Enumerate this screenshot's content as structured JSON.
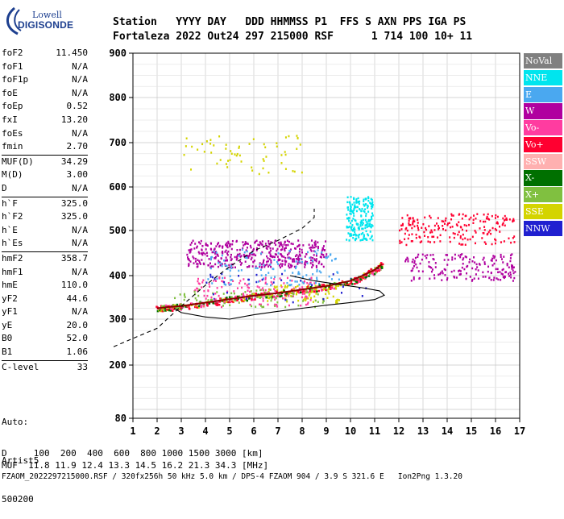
{
  "logo": {
    "top": "Lowell",
    "bottom": "DIGISONDE"
  },
  "header": {
    "line1": "Station   YYYY DAY   DDD HHMMSS P1  FFS S AXN PPS IGA PS",
    "line2": "Fortaleza 2022 Out24 297 215000 RSF      1 714 100 10+ 11"
  },
  "params": [
    {
      "name": "foF2",
      "value": "11.450"
    },
    {
      "name": "foF1",
      "value": "N/A"
    },
    {
      "name": "foF1p",
      "value": "N/A"
    },
    {
      "name": "foE",
      "value": "N/A"
    },
    {
      "name": "foEp",
      "value": "0.52"
    },
    {
      "name": "fxI",
      "value": "13.20"
    },
    {
      "name": "foEs",
      "value": "N/A"
    },
    {
      "name": "fmin",
      "value": "2.70"
    },
    {
      "name": "MUF(D)",
      "value": "34.29"
    },
    {
      "name": "M(D)",
      "value": "3.00"
    },
    {
      "name": "D",
      "value": "N/A"
    },
    {
      "name": "h`F",
      "value": "325.0"
    },
    {
      "name": "h`F2",
      "value": "325.0"
    },
    {
      "name": "h`E",
      "value": "N/A"
    },
    {
      "name": "h`Es",
      "value": "N/A"
    },
    {
      "name": "hmF2",
      "value": "358.7"
    },
    {
      "name": "hmF1",
      "value": "N/A"
    },
    {
      "name": "hmE",
      "value": "110.0"
    },
    {
      "name": "yF2",
      "value": "44.6"
    },
    {
      "name": "yF1",
      "value": "N/A"
    },
    {
      "name": "yE",
      "value": "20.0"
    },
    {
      "name": "B0",
      "value": "52.0"
    },
    {
      "name": "B1",
      "value": "1.06"
    },
    {
      "name": "C-level",
      "value": "33"
    }
  ],
  "auto": {
    "line1": "Auto:",
    "line2": "Artist5",
    "line3": "500200"
  },
  "legend": [
    {
      "label": "NoVal",
      "color": "#808080"
    },
    {
      "label": "NNE",
      "color": "#00e5ee"
    },
    {
      "label": "E",
      "color": "#4aa8f0"
    },
    {
      "label": "W",
      "color": "#b0009f"
    },
    {
      "label": "Vo-",
      "color": "#ff3ca0"
    },
    {
      "label": "Vo+",
      "color": "#ff0030"
    },
    {
      "label": "SSW",
      "color": "#ffb0b0"
    },
    {
      "label": "X-",
      "color": "#007000"
    },
    {
      "label": "X+",
      "color": "#80c040"
    },
    {
      "label": "SSE",
      "color": "#d4d400"
    },
    {
      "label": "NNW",
      "color": "#2020d0"
    }
  ],
  "bottom": {
    "line1": "D     100  200  400  600  800 1000 1500 3000 [km]",
    "line2": "MUF  11.8 11.9 12.4 13.3 14.5 16.2 21.3 34.3 [MHz]",
    "line3": "FZAOM_2022297215000.RSF / 320fx256h 50 kHz 5.0 km / DPS-4 FZAOM 904 / 3.9 S 321.6 E   Ion2Png 1.3.20"
  },
  "chart_data": {
    "type": "scatter",
    "xlim": [
      1,
      17
    ],
    "ylim": [
      80,
      900
    ],
    "xticks": [
      "1",
      "2",
      "3",
      "4",
      "5",
      "6",
      "7",
      "8",
      "9",
      "10",
      "11",
      "12",
      "13",
      "14",
      "15",
      "16",
      "17"
    ],
    "yticks": [
      "80",
      "200",
      "300",
      "400",
      "500",
      "600",
      "700",
      "800",
      "900"
    ],
    "grid": true,
    "profile_solid": [
      [
        2.7,
        325
      ],
      [
        3.0,
        315
      ],
      [
        4.0,
        305
      ],
      [
        5.0,
        300
      ],
      [
        6.0,
        310
      ],
      [
        7.0,
        318
      ],
      [
        8.0,
        325
      ],
      [
        9.0,
        332
      ],
      [
        10.0,
        338
      ],
      [
        11.0,
        345
      ],
      [
        11.4,
        355
      ],
      [
        11.2,
        365
      ],
      [
        10.5,
        372
      ],
      [
        9.5,
        380
      ],
      [
        8.5,
        388
      ],
      [
        7.5,
        400
      ]
    ],
    "profile_dashed": [
      [
        0.2,
        240
      ],
      [
        1.0,
        258
      ],
      [
        2.0,
        280
      ],
      [
        3.0,
        330
      ],
      [
        4.0,
        378
      ],
      [
        5.0,
        420
      ],
      [
        6.0,
        455
      ],
      [
        7.0,
        478
      ],
      [
        8.0,
        505
      ],
      [
        8.5,
        530
      ],
      [
        8.5,
        550
      ]
    ],
    "trace_f2": [
      [
        2.0,
        325
      ],
      [
        2.5,
        328
      ],
      [
        3.0,
        330
      ],
      [
        4.0,
        338
      ],
      [
        5.0,
        346
      ],
      [
        6.0,
        354
      ],
      [
        7.0,
        360
      ],
      [
        8.0,
        368
      ],
      [
        9.0,
        376
      ],
      [
        10.0,
        388
      ],
      [
        10.5,
        400
      ],
      [
        11.0,
        413
      ],
      [
        11.3,
        425
      ]
    ],
    "spread_clusters": [
      {
        "x": [
          3.2,
          9.0
        ],
        "y": [
          420,
          480
        ],
        "color": "#b0009f",
        "count": 420
      },
      {
        "x": [
          3.5,
          8.5
        ],
        "y": [
          330,
          400
        ],
        "color": "#ff3ca0",
        "count": 160
      },
      {
        "x": [
          4.0,
          9.5
        ],
        "y": [
          380,
          460
        ],
        "color": "#4aa8f0",
        "count": 120
      },
      {
        "x": [
          9.8,
          10.9
        ],
        "y": [
          480,
          580
        ],
        "color": "#00e5ee",
        "count": 200
      },
      {
        "x": [
          12.0,
          16.8
        ],
        "y": [
          470,
          540
        ],
        "color": "#ff0030",
        "count": 200
      },
      {
        "x": [
          12.2,
          16.8
        ],
        "y": [
          390,
          450
        ],
        "color": "#b0009f",
        "count": 180
      },
      {
        "x": [
          3.0,
          8.0
        ],
        "y": [
          630,
          720
        ],
        "color": "#d4d400",
        "count": 60
      },
      {
        "x": [
          6.5,
          9.5
        ],
        "y": [
          340,
          380
        ],
        "color": "#d4d400",
        "count": 80
      },
      {
        "x": [
          2.5,
          9.0
        ],
        "y": [
          330,
          370
        ],
        "color": "#80c040",
        "count": 70
      },
      {
        "x": [
          4.0,
          11.0
        ],
        "y": [
          340,
          410
        ],
        "color": "#2020d0",
        "count": 40
      }
    ]
  }
}
